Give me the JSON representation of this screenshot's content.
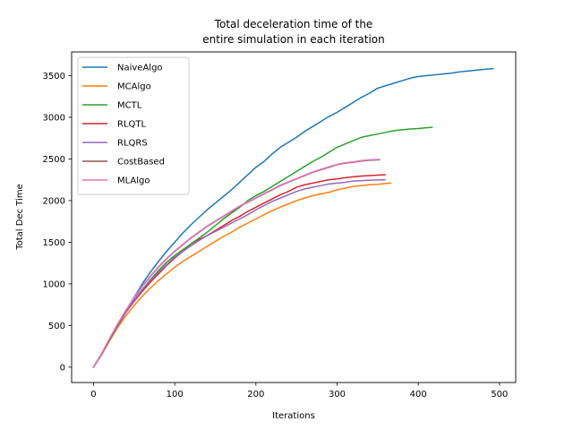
{
  "chart_data": {
    "type": "line",
    "title_line1": "Total deceleration time of the",
    "title_line2": "entire simulation in each iteration",
    "xlabel": "Iterations",
    "ylabel": "Total Dec Time",
    "xlim": [
      -27,
      520
    ],
    "ylim": [
      -185,
      3785
    ],
    "xticks": [
      0,
      100,
      200,
      300,
      400,
      500
    ],
    "yticks": [
      0,
      500,
      1000,
      1500,
      2000,
      2500,
      3000,
      3500
    ],
    "grid": false,
    "legend_position": "upper-left",
    "series": [
      {
        "name": "NaiveAlgo",
        "color": "#1f77b4",
        "points": [
          [
            0,
            0
          ],
          [
            10,
            160
          ],
          [
            20,
            340
          ],
          [
            30,
            510
          ],
          [
            40,
            680
          ],
          [
            50,
            840
          ],
          [
            60,
            1000
          ],
          [
            70,
            1140
          ],
          [
            80,
            1270
          ],
          [
            90,
            1390
          ],
          [
            100,
            1500
          ],
          [
            110,
            1610
          ],
          [
            120,
            1710
          ],
          [
            130,
            1800
          ],
          [
            140,
            1890
          ],
          [
            150,
            1970
          ],
          [
            160,
            2050
          ],
          [
            170,
            2130
          ],
          [
            180,
            2220
          ],
          [
            190,
            2310
          ],
          [
            200,
            2400
          ],
          [
            210,
            2470
          ],
          [
            220,
            2560
          ],
          [
            230,
            2640
          ],
          [
            240,
            2700
          ],
          [
            250,
            2760
          ],
          [
            260,
            2830
          ],
          [
            270,
            2890
          ],
          [
            280,
            2950
          ],
          [
            290,
            3010
          ],
          [
            300,
            3060
          ],
          [
            310,
            3120
          ],
          [
            320,
            3180
          ],
          [
            330,
            3240
          ],
          [
            340,
            3290
          ],
          [
            350,
            3350
          ],
          [
            360,
            3380
          ],
          [
            370,
            3410
          ],
          [
            380,
            3440
          ],
          [
            390,
            3470
          ],
          [
            400,
            3490
          ],
          [
            410,
            3500
          ],
          [
            420,
            3510
          ],
          [
            430,
            3520
          ],
          [
            440,
            3530
          ],
          [
            450,
            3545
          ],
          [
            460,
            3555
          ],
          [
            470,
            3565
          ],
          [
            480,
            3575
          ],
          [
            492,
            3585
          ]
        ]
      },
      {
        "name": "MCAlgo",
        "color": "#ff7f0e",
        "points": [
          [
            0,
            0
          ],
          [
            10,
            150
          ],
          [
            20,
            320
          ],
          [
            30,
            480
          ],
          [
            40,
            620
          ],
          [
            50,
            740
          ],
          [
            60,
            850
          ],
          [
            70,
            950
          ],
          [
            80,
            1040
          ],
          [
            90,
            1120
          ],
          [
            100,
            1200
          ],
          [
            110,
            1270
          ],
          [
            120,
            1330
          ],
          [
            130,
            1390
          ],
          [
            140,
            1450
          ],
          [
            150,
            1510
          ],
          [
            160,
            1570
          ],
          [
            170,
            1620
          ],
          [
            180,
            1680
          ],
          [
            190,
            1730
          ],
          [
            200,
            1780
          ],
          [
            210,
            1830
          ],
          [
            220,
            1880
          ],
          [
            230,
            1920
          ],
          [
            240,
            1960
          ],
          [
            250,
            2000
          ],
          [
            260,
            2030
          ],
          [
            270,
            2060
          ],
          [
            280,
            2080
          ],
          [
            290,
            2100
          ],
          [
            300,
            2130
          ],
          [
            310,
            2150
          ],
          [
            320,
            2170
          ],
          [
            330,
            2180
          ],
          [
            340,
            2190
          ],
          [
            350,
            2195
          ],
          [
            360,
            2205
          ],
          [
            366,
            2210
          ]
        ]
      },
      {
        "name": "MCTL",
        "color": "#2ca02c",
        "points": [
          [
            0,
            0
          ],
          [
            10,
            155
          ],
          [
            20,
            330
          ],
          [
            30,
            500
          ],
          [
            40,
            660
          ],
          [
            50,
            800
          ],
          [
            60,
            930
          ],
          [
            70,
            1050
          ],
          [
            80,
            1160
          ],
          [
            90,
            1260
          ],
          [
            100,
            1340
          ],
          [
            110,
            1410
          ],
          [
            120,
            1480
          ],
          [
            130,
            1550
          ],
          [
            140,
            1620
          ],
          [
            150,
            1700
          ],
          [
            160,
            1780
          ],
          [
            170,
            1850
          ],
          [
            180,
            1920
          ],
          [
            190,
            2000
          ],
          [
            200,
            2060
          ],
          [
            210,
            2110
          ],
          [
            220,
            2170
          ],
          [
            230,
            2230
          ],
          [
            240,
            2290
          ],
          [
            250,
            2350
          ],
          [
            260,
            2410
          ],
          [
            270,
            2470
          ],
          [
            280,
            2520
          ],
          [
            290,
            2580
          ],
          [
            300,
            2640
          ],
          [
            310,
            2680
          ],
          [
            320,
            2720
          ],
          [
            330,
            2760
          ],
          [
            340,
            2780
          ],
          [
            350,
            2800
          ],
          [
            360,
            2820
          ],
          [
            370,
            2840
          ],
          [
            380,
            2850
          ],
          [
            390,
            2860
          ],
          [
            400,
            2865
          ],
          [
            410,
            2875
          ],
          [
            417,
            2880
          ]
        ]
      },
      {
        "name": "RLQTL",
        "color": "#d62728",
        "points": [
          [
            0,
            0
          ],
          [
            10,
            160
          ],
          [
            20,
            340
          ],
          [
            30,
            510
          ],
          [
            40,
            660
          ],
          [
            50,
            790
          ],
          [
            60,
            910
          ],
          [
            70,
            1020
          ],
          [
            80,
            1120
          ],
          [
            90,
            1220
          ],
          [
            100,
            1310
          ],
          [
            110,
            1390
          ],
          [
            120,
            1460
          ],
          [
            130,
            1530
          ],
          [
            140,
            1580
          ],
          [
            150,
            1640
          ],
          [
            160,
            1700
          ],
          [
            170,
            1760
          ],
          [
            180,
            1810
          ],
          [
            190,
            1870
          ],
          [
            200,
            1920
          ],
          [
            210,
            1970
          ],
          [
            220,
            2020
          ],
          [
            230,
            2070
          ],
          [
            240,
            2110
          ],
          [
            250,
            2160
          ],
          [
            260,
            2190
          ],
          [
            270,
            2210
          ],
          [
            280,
            2230
          ],
          [
            290,
            2250
          ],
          [
            300,
            2260
          ],
          [
            310,
            2275
          ],
          [
            320,
            2285
          ],
          [
            330,
            2295
          ],
          [
            340,
            2300
          ],
          [
            350,
            2305
          ],
          [
            359,
            2310
          ]
        ]
      },
      {
        "name": "RLQRS",
        "color": "#9467bd",
        "points": [
          [
            0,
            0
          ],
          [
            10,
            160
          ],
          [
            20,
            340
          ],
          [
            30,
            510
          ],
          [
            40,
            660
          ],
          [
            50,
            800
          ],
          [
            60,
            930
          ],
          [
            70,
            1040
          ],
          [
            80,
            1140
          ],
          [
            90,
            1230
          ],
          [
            100,
            1320
          ],
          [
            110,
            1390
          ],
          [
            120,
            1460
          ],
          [
            130,
            1520
          ],
          [
            140,
            1580
          ],
          [
            150,
            1630
          ],
          [
            160,
            1680
          ],
          [
            170,
            1730
          ],
          [
            180,
            1780
          ],
          [
            190,
            1830
          ],
          [
            200,
            1890
          ],
          [
            210,
            1940
          ],
          [
            220,
            1990
          ],
          [
            230,
            2030
          ],
          [
            240,
            2070
          ],
          [
            250,
            2110
          ],
          [
            260,
            2140
          ],
          [
            270,
            2160
          ],
          [
            280,
            2180
          ],
          [
            290,
            2200
          ],
          [
            300,
            2210
          ],
          [
            310,
            2220
          ],
          [
            320,
            2235
          ],
          [
            330,
            2240
          ],
          [
            340,
            2245
          ],
          [
            350,
            2248
          ],
          [
            359,
            2250
          ]
        ]
      },
      {
        "name": "CostBased",
        "color": "#8c564b",
        "points": [
          [
            0,
            0
          ],
          [
            10,
            160
          ],
          [
            20,
            345
          ],
          [
            30,
            520
          ],
          [
            40,
            680
          ],
          [
            50,
            830
          ],
          [
            60,
            970
          ],
          [
            70,
            1090
          ],
          [
            80,
            1200
          ],
          [
            90,
            1300
          ],
          [
            100,
            1390
          ],
          [
            110,
            1470
          ],
          [
            120,
            1550
          ],
          [
            130,
            1620
          ],
          [
            140,
            1690
          ],
          [
            150,
            1750
          ],
          [
            160,
            1810
          ],
          [
            170,
            1870
          ],
          [
            180,
            1930
          ],
          [
            190,
            1980
          ],
          [
            200,
            2030
          ],
          [
            210,
            2080
          ],
          [
            220,
            2130
          ],
          [
            230,
            2180
          ],
          [
            240,
            2220
          ],
          [
            250,
            2260
          ],
          [
            260,
            2300
          ],
          [
            270,
            2340
          ],
          [
            280,
            2370
          ],
          [
            290,
            2400
          ],
          [
            300,
            2430
          ],
          [
            310,
            2450
          ],
          [
            320,
            2460
          ],
          [
            330,
            2475
          ],
          [
            340,
            2485
          ],
          [
            352,
            2490
          ]
        ]
      },
      {
        "name": "MLAlgo",
        "color": "#e377c2",
        "points": [
          [
            0,
            0
          ],
          [
            10,
            165
          ],
          [
            20,
            350
          ],
          [
            30,
            525
          ],
          [
            40,
            685
          ],
          [
            50,
            835
          ],
          [
            60,
            975
          ],
          [
            70,
            1095
          ],
          [
            80,
            1205
          ],
          [
            90,
            1305
          ],
          [
            100,
            1395
          ],
          [
            110,
            1475
          ],
          [
            120,
            1555
          ],
          [
            130,
            1625
          ],
          [
            140,
            1695
          ],
          [
            150,
            1755
          ],
          [
            160,
            1815
          ],
          [
            170,
            1875
          ],
          [
            180,
            1935
          ],
          [
            190,
            1985
          ],
          [
            200,
            2035
          ],
          [
            210,
            2085
          ],
          [
            220,
            2135
          ],
          [
            230,
            2185
          ],
          [
            240,
            2225
          ],
          [
            250,
            2265
          ],
          [
            260,
            2305
          ],
          [
            270,
            2345
          ],
          [
            280,
            2375
          ],
          [
            290,
            2405
          ],
          [
            300,
            2435
          ],
          [
            310,
            2455
          ],
          [
            320,
            2465
          ],
          [
            330,
            2480
          ],
          [
            340,
            2490
          ],
          [
            352,
            2495
          ]
        ]
      }
    ]
  }
}
